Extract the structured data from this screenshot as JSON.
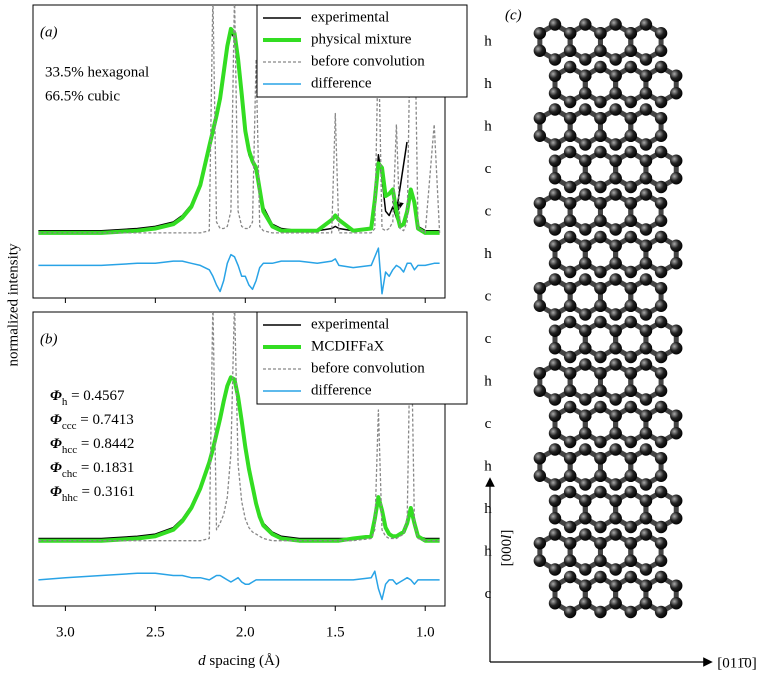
{
  "chart_data": [
    {
      "type": "line",
      "panel_label": "(a)",
      "y_label": "normalized intensity",
      "annotations": [
        "33.5% hexagonal",
        "66.5% cubic"
      ],
      "legend": "upper right",
      "xlim": [
        3.18,
        0.89
      ],
      "ylim": [
        -0.3,
        1.05
      ],
      "xticks": [
        3,
        2.5,
        2,
        1.5,
        1
      ],
      "x": [
        3.15,
        3.0,
        2.8,
        2.6,
        2.5,
        2.4,
        2.35,
        2.3,
        2.25,
        2.2,
        2.18,
        2.16,
        2.14,
        2.12,
        2.1,
        2.08,
        2.06,
        2.04,
        2.02,
        2.0,
        1.98,
        1.96,
        1.94,
        1.92,
        1.9,
        1.85,
        1.8,
        1.7,
        1.6,
        1.52,
        1.5,
        1.48,
        1.4,
        1.3,
        1.28,
        1.26,
        1.24,
        1.22,
        1.2,
        1.18,
        1.16,
        1.14,
        1.12,
        1.1,
        1.08,
        1.06,
        1.04,
        1.0,
        0.95,
        0.92
      ],
      "series": [
        {
          "name": "experimental",
          "color": "#000000",
          "style": "solid",
          "width": 1.5,
          "values": [
            0.01,
            0.01,
            0.01,
            0.02,
            0.03,
            0.05,
            0.08,
            0.13,
            0.22,
            0.38,
            0.45,
            0.52,
            0.6,
            0.72,
            0.84,
            0.92,
            0.9,
            0.78,
            0.62,
            0.45,
            0.36,
            0.32,
            0.28,
            0.2,
            0.12,
            0.04,
            0.02,
            0.01,
            0.01,
            0.02,
            0.03,
            0.02,
            0.01,
            0.02,
            0.12,
            0.36,
            0.25,
            0.1,
            0.08,
            0.12,
            0.07,
            0.03,
            0.04,
            0.08,
            0.2,
            0.12,
            0.03,
            0.01,
            0.01,
            0.01
          ]
        },
        {
          "name": "physical mixture",
          "color": "#33dd22",
          "style": "solid",
          "width": 4,
          "values": [
            0.0,
            0.0,
            0.0,
            0.01,
            0.02,
            0.04,
            0.07,
            0.12,
            0.22,
            0.4,
            0.47,
            0.54,
            0.62,
            0.74,
            0.86,
            0.94,
            0.92,
            0.8,
            0.64,
            0.47,
            0.38,
            0.33,
            0.3,
            0.2,
            0.1,
            0.03,
            0.01,
            0.01,
            0.01,
            0.06,
            0.08,
            0.06,
            0.01,
            0.02,
            0.15,
            0.32,
            0.3,
            0.17,
            0.18,
            0.2,
            0.1,
            0.03,
            0.04,
            0.1,
            0.2,
            0.14,
            0.02,
            0.0,
            0.0,
            0.0
          ]
        },
        {
          "name": "before convolution",
          "color": "#888888",
          "style": "dashed",
          "width": 1.3,
          "values": [
            0,
            0,
            0,
            0,
            0,
            0,
            0,
            0,
            0,
            0.01,
            1.1,
            0.05,
            0.02,
            0.02,
            0.03,
            0.1,
            1.1,
            0.1,
            0.03,
            0.02,
            0.02,
            0.05,
            0.8,
            0.03,
            0.01,
            0,
            0,
            0,
            0,
            0,
            0.55,
            0,
            0,
            0,
            0.02,
            0.9,
            0.02,
            0.01,
            0.02,
            0.05,
            0.5,
            0.02,
            0.01,
            0.05,
            1.1,
            1.1,
            0.02,
            0,
            0.5,
            0
          ]
        },
        {
          "name": "difference",
          "color": "#29a3e6",
          "style": "solid",
          "width": 1.5,
          "values": [
            -0.15,
            -0.15,
            -0.15,
            -0.14,
            -0.14,
            -0.13,
            -0.13,
            -0.14,
            -0.15,
            -0.17,
            -0.2,
            -0.24,
            -0.27,
            -0.22,
            -0.14,
            -0.1,
            -0.11,
            -0.15,
            -0.2,
            -0.2,
            -0.24,
            -0.26,
            -0.22,
            -0.16,
            -0.14,
            -0.14,
            -0.13,
            -0.13,
            -0.14,
            -0.13,
            -0.12,
            -0.15,
            -0.16,
            -0.15,
            -0.11,
            -0.07,
            -0.28,
            -0.18,
            -0.2,
            -0.17,
            -0.15,
            -0.16,
            -0.18,
            -0.14,
            -0.14,
            -0.17,
            -0.15,
            -0.15,
            -0.14,
            -0.14
          ]
        }
      ]
    },
    {
      "type": "line",
      "panel_label": "(b)",
      "x_label_var": "d",
      "x_label": "spacing (Å)",
      "parameters": [
        {
          "symbol": "Φ",
          "sub": "h",
          "text": " = 0.4567"
        },
        {
          "symbol": "Φ",
          "sub": "ccc",
          "text": " = 0.7413"
        },
        {
          "symbol": "Φ",
          "sub": "hcc",
          "text": " = 0.8442"
        },
        {
          "symbol": "Φ",
          "sub": "chc",
          "text": " = 0.1831"
        },
        {
          "symbol": "Φ",
          "sub": "hhc",
          "text": " = 0.3161"
        }
      ],
      "legend": "upper right",
      "xlim": [
        3.18,
        0.89
      ],
      "ylim": [
        -0.3,
        1.05
      ],
      "xticks": [
        {
          "value": 3,
          "label": "3.0"
        },
        {
          "value": 2.5,
          "label": "2.5"
        },
        {
          "value": 2,
          "label": "2.0"
        },
        {
          "value": 1.5,
          "label": "1.5"
        },
        {
          "value": 1,
          "label": "1.0"
        }
      ],
      "x": [
        3.15,
        3.0,
        2.8,
        2.6,
        2.5,
        2.4,
        2.35,
        2.3,
        2.25,
        2.2,
        2.18,
        2.16,
        2.14,
        2.12,
        2.1,
        2.08,
        2.06,
        2.04,
        2.02,
        2.0,
        1.98,
        1.96,
        1.94,
        1.92,
        1.9,
        1.85,
        1.8,
        1.7,
        1.6,
        1.52,
        1.5,
        1.48,
        1.4,
        1.3,
        1.28,
        1.26,
        1.24,
        1.22,
        1.2,
        1.18,
        1.16,
        1.14,
        1.12,
        1.1,
        1.08,
        1.06,
        1.04,
        1.0,
        0.95,
        0.92
      ],
      "series": [
        {
          "name": "experimental",
          "color": "#000000",
          "style": "solid",
          "width": 1.5,
          "values": [
            0.01,
            0.01,
            0.01,
            0.02,
            0.03,
            0.06,
            0.1,
            0.16,
            0.25,
            0.36,
            0.42,
            0.48,
            0.55,
            0.63,
            0.7,
            0.75,
            0.74,
            0.66,
            0.56,
            0.44,
            0.34,
            0.26,
            0.18,
            0.12,
            0.08,
            0.04,
            0.02,
            0.01,
            0.01,
            0.01,
            0.01,
            0.01,
            0.01,
            0.02,
            0.1,
            0.2,
            0.14,
            0.06,
            0.03,
            0.02,
            0.02,
            0.03,
            0.04,
            0.08,
            0.15,
            0.08,
            0.02,
            0.01,
            0.01,
            0.01
          ]
        },
        {
          "name": "MCDIFFaX",
          "color": "#33dd22",
          "style": "solid",
          "width": 4,
          "values": [
            0,
            0,
            0,
            0.01,
            0.02,
            0.05,
            0.09,
            0.15,
            0.24,
            0.36,
            0.42,
            0.49,
            0.56,
            0.64,
            0.71,
            0.75,
            0.74,
            0.66,
            0.55,
            0.43,
            0.33,
            0.25,
            0.17,
            0.11,
            0.07,
            0.03,
            0.01,
            0,
            0,
            0,
            0,
            0,
            0.01,
            0.02,
            0.1,
            0.2,
            0.14,
            0.06,
            0.03,
            0.02,
            0.02,
            0.03,
            0.04,
            0.08,
            0.15,
            0.08,
            0.02,
            0,
            0,
            0
          ]
        },
        {
          "name": "before convolution",
          "color": "#888888",
          "style": "dashed",
          "width": 1.3,
          "values": [
            0,
            0,
            0,
            0,
            0,
            0,
            0,
            0,
            0,
            0.01,
            1.1,
            0.05,
            0.08,
            0.12,
            0.2,
            0.4,
            1.1,
            0.35,
            0.18,
            0.1,
            0.06,
            0.04,
            0.03,
            0.02,
            0.01,
            0,
            0,
            0,
            0,
            0,
            0,
            0,
            0,
            0.01,
            0.05,
            0.6,
            0.05,
            0.02,
            0.01,
            0.01,
            0.01,
            0.02,
            0.03,
            0.1,
            1.1,
            0.08,
            0.01,
            0,
            0,
            0
          ]
        },
        {
          "name": "difference",
          "color": "#29a3e6",
          "style": "solid",
          "width": 1.5,
          "values": [
            -0.18,
            -0.17,
            -0.16,
            -0.15,
            -0.15,
            -0.16,
            -0.16,
            -0.17,
            -0.17,
            -0.18,
            -0.17,
            -0.16,
            -0.16,
            -0.17,
            -0.18,
            -0.19,
            -0.18,
            -0.17,
            -0.19,
            -0.2,
            -0.2,
            -0.19,
            -0.18,
            -0.18,
            -0.18,
            -0.18,
            -0.18,
            -0.18,
            -0.18,
            -0.18,
            -0.18,
            -0.18,
            -0.18,
            -0.17,
            -0.14,
            -0.22,
            -0.27,
            -0.2,
            -0.18,
            -0.18,
            -0.2,
            -0.19,
            -0.18,
            -0.17,
            -0.18,
            -0.2,
            -0.18,
            -0.18,
            -0.18,
            -0.18
          ]
        }
      ]
    }
  ],
  "structure": {
    "panel_label": "(c)",
    "stacking": [
      "h",
      "h",
      "h",
      "c",
      "c",
      "h",
      "c",
      "c",
      "h",
      "c",
      "h",
      "h",
      "h",
      "c"
    ],
    "vertical_axis": "[000",
    "vertical_axis_var": "l",
    "vertical_axis_end": "]",
    "horizontal_axis": "[011̄0]"
  }
}
